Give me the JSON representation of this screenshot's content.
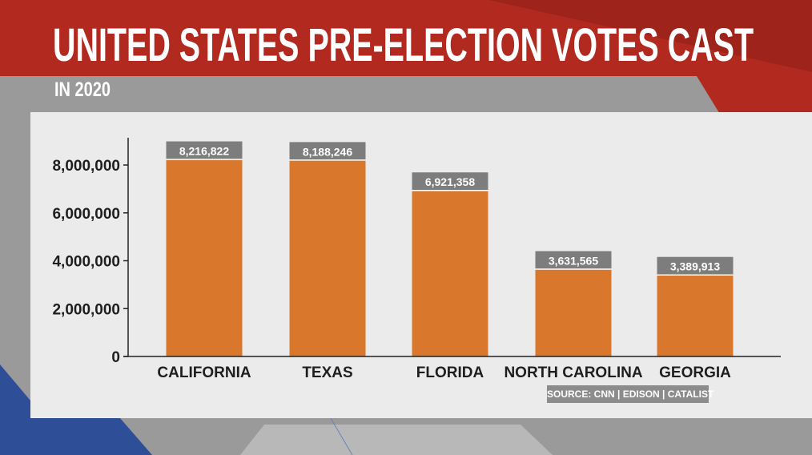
{
  "header": {
    "title": "UNITED STATES PRE-ELECTION VOTES CAST",
    "subtitle": "IN 2020"
  },
  "source": "SOURCE: CNN | EDISON | CATALIST",
  "colors": {
    "bar": "#d9782d",
    "label_box": "#7d7d7d",
    "red": "#b22a1f",
    "blue": "#2e4f97",
    "panel": "#ebebeb"
  },
  "chart_data": {
    "type": "bar",
    "title": "UNITED STATES PRE-ELECTION VOTES CAST",
    "subtitle": "IN 2020",
    "categories": [
      "CALIFORNIA",
      "TEXAS",
      "FLORIDA",
      "NORTH CAROLINA",
      "GEORGIA"
    ],
    "values": [
      8216822,
      8188246,
      6921358,
      3631565,
      3389913
    ],
    "data_labels": [
      "8,216,822",
      "8,188,246",
      "6,921,358",
      "3,631,565",
      "3,389,913"
    ],
    "y_ticks": [
      0,
      2000000,
      4000000,
      6000000,
      8000000
    ],
    "y_tick_labels": [
      "0",
      "2,000,000",
      "4,000,000",
      "6,000,000",
      "8,000,000"
    ],
    "ylim": [
      0,
      9000000
    ],
    "xlabel": "",
    "ylabel": "",
    "grid": false,
    "legend": "none"
  }
}
